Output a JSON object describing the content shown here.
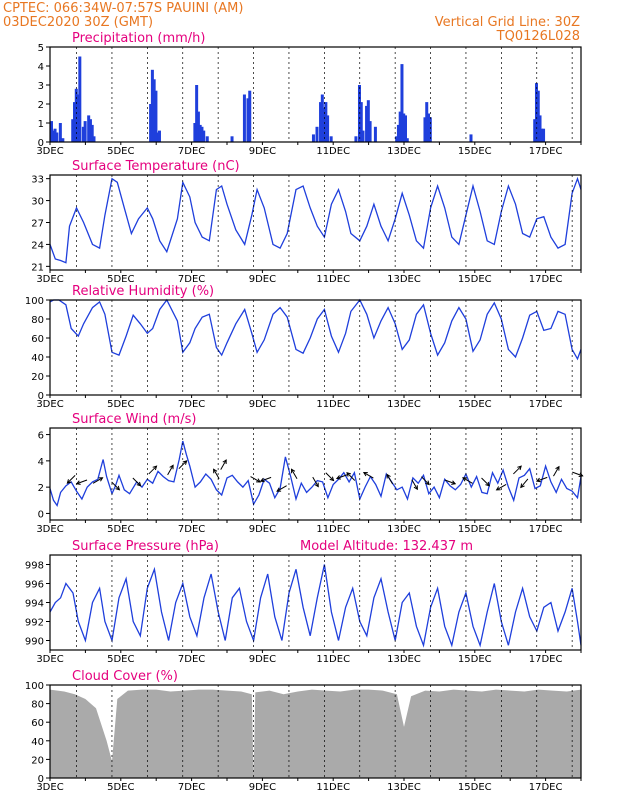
{
  "header": {
    "line1_left": "CPTEC:   066:34W-07:57S   PAUINI (AM)",
    "line2_left": "03DEC2020 30Z (GMT)",
    "line2_right": "Vertical Grid Line: 30Z",
    "line3_right": "TQ0126L028"
  },
  "colors": {
    "header": "#e87722",
    "title": "#e5007e",
    "line": "#1f3fdc",
    "cloud": "#aaaaaa"
  },
  "x_axis": {
    "tick_labels": [
      "3DEC",
      "5DEC",
      "7DEC",
      "9DEC",
      "11DEC",
      "13DEC",
      "15DEC",
      "17DEC"
    ],
    "start_day": 3,
    "end_day": 18,
    "grid_days": [
      3.75,
      4.75,
      5.75,
      6.75,
      7.75,
      8.75,
      9.75,
      10.75,
      11.75,
      12.75,
      13.75,
      14.75,
      15.75,
      16.75,
      17.75
    ]
  },
  "chart_data": [
    {
      "type": "bar",
      "title": "Precipitation (mm/h)",
      "ylim": [
        0,
        5
      ],
      "yticks": [
        0,
        1,
        2,
        3,
        4,
        5
      ],
      "x": [
        3.0,
        3.05,
        3.1,
        3.15,
        3.25,
        3.32,
        3.6,
        3.65,
        3.7,
        3.75,
        3.8,
        3.9,
        3.95,
        4.05,
        4.1,
        4.15,
        4.2,
        5.8,
        5.85,
        5.9,
        5.95,
        6.0,
        6.05,
        7.05,
        7.1,
        7.15,
        7.2,
        7.25,
        7.3,
        7.4,
        8.1,
        8.45,
        8.55,
        8.6,
        10.4,
        10.5,
        10.6,
        10.65,
        10.7,
        10.75,
        10.8,
        10.9,
        11.6,
        11.7,
        11.75,
        11.8,
        11.9,
        11.95,
        12.0,
        12.15,
        12.75,
        12.8,
        12.85,
        12.9,
        12.95,
        13.0,
        13.05,
        13.55,
        13.6,
        13.65,
        13.7,
        14.85,
        16.65,
        16.7,
        16.75,
        16.8,
        16.85,
        16.9
      ],
      "values": [
        1.1,
        0.6,
        0.7,
        0.5,
        1.0,
        0.2,
        1.2,
        2.1,
        2.8,
        2.5,
        4.5,
        0.8,
        1.1,
        1.4,
        1.2,
        0.9,
        0.3,
        2.0,
        3.8,
        3.3,
        2.7,
        0.5,
        0.6,
        1.0,
        3.0,
        1.6,
        0.9,
        0.8,
        0.6,
        0.3,
        0.3,
        2.5,
        2.3,
        2.7,
        0.4,
        0.8,
        2.1,
        2.5,
        1.8,
        2.1,
        1.4,
        0.3,
        0.3,
        3.0,
        2.1,
        0.6,
        1.9,
        2.2,
        1.1,
        0.8,
        0.3,
        0.9,
        1.6,
        4.1,
        1.5,
        1.4,
        0.2,
        1.3,
        2.1,
        1.5,
        1.3,
        0.4,
        1.2,
        3.1,
        2.7,
        1.4,
        0.7,
        0.7
      ]
    },
    {
      "type": "line",
      "title": "Surface Temperature (nC)",
      "ylim": [
        20.5,
        33.5
      ],
      "yticks": [
        21,
        24,
        27,
        30,
        33
      ],
      "x": [
        3.0,
        3.15,
        3.3,
        3.45,
        3.55,
        3.75,
        3.95,
        4.2,
        4.4,
        4.55,
        4.75,
        4.9,
        5.1,
        5.3,
        5.5,
        5.75,
        5.9,
        6.1,
        6.3,
        6.6,
        6.75,
        6.95,
        7.1,
        7.3,
        7.5,
        7.7,
        7.85,
        8.0,
        8.25,
        8.5,
        8.7,
        8.85,
        9.05,
        9.3,
        9.5,
        9.7,
        9.95,
        10.15,
        10.35,
        10.55,
        10.75,
        10.95,
        11.15,
        11.35,
        11.5,
        11.75,
        11.95,
        12.15,
        12.35,
        12.55,
        12.75,
        12.95,
        13.15,
        13.35,
        13.55,
        13.75,
        13.95,
        14.15,
        14.35,
        14.55,
        14.75,
        14.95,
        15.15,
        15.35,
        15.55,
        15.75,
        15.95,
        16.15,
        16.35,
        16.55,
        16.75,
        16.95,
        17.15,
        17.35,
        17.55,
        17.75,
        17.9,
        18.0
      ],
      "values": [
        24.0,
        22.0,
        21.8,
        21.5,
        26.5,
        29.0,
        27.0,
        24.0,
        23.5,
        28.0,
        33.0,
        32.5,
        29.0,
        25.5,
        27.5,
        29.0,
        27.5,
        24.5,
        23.0,
        27.5,
        32.5,
        30.5,
        27.0,
        25.0,
        24.5,
        31.5,
        32.0,
        29.5,
        26.0,
        24.0,
        28.0,
        31.5,
        29.0,
        24.0,
        23.5,
        25.5,
        31.5,
        32.0,
        29.0,
        26.5,
        25.0,
        29.5,
        31.5,
        28.5,
        25.5,
        24.5,
        26.5,
        29.5,
        26.5,
        24.5,
        27.5,
        31.0,
        28.0,
        24.5,
        23.5,
        29.0,
        32.0,
        29.0,
        25.0,
        24.0,
        28.0,
        32.0,
        28.5,
        24.5,
        24.0,
        28.5,
        32.0,
        29.5,
        25.5,
        25.0,
        27.5,
        27.8,
        25.0,
        23.5,
        24.0,
        31.0,
        33.0,
        31.5
      ]
    },
    {
      "type": "line",
      "title": "Relative Humidity (%)",
      "ylim": [
        0,
        100
      ],
      "yticks": [
        0,
        20,
        40,
        60,
        80,
        100
      ],
      "x": [
        3.0,
        3.1,
        3.25,
        3.45,
        3.6,
        3.8,
        3.95,
        4.2,
        4.4,
        4.55,
        4.75,
        4.95,
        5.15,
        5.35,
        5.55,
        5.75,
        5.9,
        6.1,
        6.3,
        6.6,
        6.75,
        6.95,
        7.1,
        7.3,
        7.5,
        7.7,
        7.85,
        8.0,
        8.25,
        8.5,
        8.7,
        8.85,
        9.05,
        9.3,
        9.5,
        9.7,
        9.95,
        10.15,
        10.35,
        10.55,
        10.75,
        10.95,
        11.15,
        11.35,
        11.5,
        11.75,
        11.95,
        12.15,
        12.35,
        12.55,
        12.75,
        12.95,
        13.15,
        13.35,
        13.55,
        13.75,
        13.95,
        14.15,
        14.35,
        14.55,
        14.75,
        14.95,
        15.15,
        15.35,
        15.55,
        15.75,
        15.95,
        16.15,
        16.35,
        16.55,
        16.75,
        16.95,
        17.15,
        17.35,
        17.55,
        17.75,
        17.9,
        18.0
      ],
      "values": [
        98,
        100,
        100,
        95,
        70,
        62,
        75,
        92,
        98,
        85,
        45,
        42,
        62,
        84,
        75,
        65,
        70,
        90,
        100,
        78,
        45,
        55,
        70,
        82,
        85,
        50,
        42,
        55,
        75,
        90,
        65,
        45,
        58,
        85,
        92,
        82,
        48,
        44,
        60,
        80,
        90,
        62,
        45,
        65,
        88,
        100,
        85,
        60,
        78,
        92,
        75,
        48,
        58,
        85,
        95,
        65,
        42,
        55,
        78,
        92,
        80,
        46,
        58,
        85,
        97,
        80,
        48,
        40,
        60,
        84,
        88,
        68,
        70,
        88,
        85,
        48,
        38,
        48
      ]
    },
    {
      "type": "line",
      "title": "Surface Wind (m/s)",
      "ylim": [
        -0.5,
        6.5
      ],
      "yticks": [
        0,
        2,
        4,
        6
      ],
      "x": [
        3.0,
        3.1,
        3.2,
        3.3,
        3.45,
        3.6,
        3.75,
        3.9,
        4.05,
        4.2,
        4.35,
        4.5,
        4.6,
        4.75,
        4.85,
        4.95,
        5.1,
        5.25,
        5.45,
        5.6,
        5.75,
        5.9,
        6.05,
        6.2,
        6.35,
        6.5,
        6.65,
        6.75,
        6.85,
        6.95,
        7.1,
        7.25,
        7.4,
        7.55,
        7.7,
        7.85,
        8.0,
        8.15,
        8.3,
        8.45,
        8.6,
        8.75,
        8.9,
        9.05,
        9.2,
        9.35,
        9.5,
        9.65,
        9.8,
        9.95,
        10.1,
        10.25,
        10.4,
        10.55,
        10.7,
        10.85,
        11.0,
        11.15,
        11.3,
        11.45,
        11.6,
        11.75,
        11.9,
        12.05,
        12.2,
        12.35,
        12.5,
        12.65,
        12.8,
        12.95,
        13.1,
        13.25,
        13.4,
        13.55,
        13.7,
        13.85,
        14.0,
        14.15,
        14.3,
        14.45,
        14.6,
        14.75,
        14.9,
        15.05,
        15.2,
        15.35,
        15.5,
        15.65,
        15.8,
        15.95,
        16.1,
        16.25,
        16.4,
        16.55,
        16.7,
        16.85,
        17.0,
        17.15,
        17.3,
        17.45,
        17.6,
        17.75,
        17.9,
        18.0
      ],
      "values": [
        1.9,
        1.0,
        0.6,
        1.6,
        2.1,
        2.4,
        1.7,
        1.1,
        2.0,
        2.4,
        2.6,
        4.1,
        2.8,
        1.5,
        2.1,
        2.9,
        1.8,
        1.5,
        2.4,
        2.0,
        2.6,
        2.3,
        3.2,
        2.8,
        2.5,
        2.4,
        4.1,
        5.5,
        4.5,
        3.6,
        2.0,
        2.4,
        3.0,
        2.6,
        1.8,
        1.4,
        2.7,
        2.9,
        2.4,
        2.0,
        2.5,
        0.7,
        1.4,
        2.6,
        2.3,
        1.2,
        1.9,
        4.3,
        2.8,
        1.1,
        2.3,
        1.6,
        2.0,
        2.5,
        2.4,
        1.2,
        2.2,
        2.6,
        3.1,
        2.4,
        3.1,
        1.1,
        2.0,
        2.8,
        2.2,
        1.3,
        3.0,
        2.4,
        1.8,
        2.0,
        1.1,
        2.7,
        2.3,
        2.9,
        1.5,
        2.0,
        1.2,
        2.6,
        2.1,
        1.8,
        2.2,
        3.0,
        2.0,
        2.8,
        1.6,
        1.5,
        3.1,
        2.3,
        3.3,
        2.0,
        1.0,
        2.7,
        2.9,
        3.4,
        1.9,
        2.1,
        3.6,
        2.4,
        1.6,
        2.6,
        1.9,
        1.7,
        1.2,
        2.8
      ],
      "arrows": [
        {
          "x": 3.6,
          "y": 2.6,
          "dir_deg": 225
        },
        {
          "x": 3.9,
          "y": 2.4,
          "dir_deg": 200
        },
        {
          "x": 4.35,
          "y": 2.5,
          "dir_deg": 30
        },
        {
          "x": 4.85,
          "y": 2.1,
          "dir_deg": 315
        },
        {
          "x": 5.45,
          "y": 2.4,
          "dir_deg": 315
        },
        {
          "x": 5.9,
          "y": 3.3,
          "dir_deg": 45
        },
        {
          "x": 6.4,
          "y": 3.3,
          "dir_deg": 60
        },
        {
          "x": 6.75,
          "y": 3.7,
          "dir_deg": 45
        },
        {
          "x": 7.7,
          "y": 3.0,
          "dir_deg": 120
        },
        {
          "x": 7.9,
          "y": 3.7,
          "dir_deg": 60
        },
        {
          "x": 8.8,
          "y": 2.6,
          "dir_deg": 330
        },
        {
          "x": 9.1,
          "y": 2.6,
          "dir_deg": 200
        },
        {
          "x": 9.55,
          "y": 1.9,
          "dir_deg": 210
        },
        {
          "x": 9.9,
          "y": 3.0,
          "dir_deg": 120
        },
        {
          "x": 10.5,
          "y": 2.4,
          "dir_deg": 300
        },
        {
          "x": 10.9,
          "y": 2.8,
          "dir_deg": 315
        },
        {
          "x": 11.25,
          "y": 2.8,
          "dir_deg": 200
        },
        {
          "x": 11.5,
          "y": 2.8,
          "dir_deg": 135
        },
        {
          "x": 12.0,
          "y": 2.9,
          "dir_deg": 150
        },
        {
          "x": 12.6,
          "y": 2.6,
          "dir_deg": 120
        },
        {
          "x": 13.3,
          "y": 2.2,
          "dir_deg": 300
        },
        {
          "x": 13.6,
          "y": 2.5,
          "dir_deg": 315
        },
        {
          "x": 14.3,
          "y": 2.4,
          "dir_deg": 340
        },
        {
          "x": 14.8,
          "y": 2.5,
          "dir_deg": 150
        },
        {
          "x": 15.3,
          "y": 2.4,
          "dir_deg": 315
        },
        {
          "x": 15.75,
          "y": 2.0,
          "dir_deg": 210
        },
        {
          "x": 16.2,
          "y": 3.3,
          "dir_deg": 45
        },
        {
          "x": 16.4,
          "y": 2.3,
          "dir_deg": 230
        },
        {
          "x": 16.9,
          "y": 2.6,
          "dir_deg": 200
        },
        {
          "x": 17.3,
          "y": 3.2,
          "dir_deg": 60
        },
        {
          "x": 17.9,
          "y": 3.0,
          "dir_deg": 340
        }
      ]
    },
    {
      "type": "line",
      "title": "Surface Pressure (hPa)",
      "subtitle": "Model Altitude: 132.437 m",
      "ylim": [
        989,
        999
      ],
      "yticks": [
        990,
        992,
        994,
        996,
        998
      ],
      "x": [
        3.0,
        3.15,
        3.3,
        3.45,
        3.65,
        3.8,
        4.0,
        4.2,
        4.4,
        4.55,
        4.75,
        4.95,
        5.15,
        5.35,
        5.55,
        5.75,
        5.95,
        6.15,
        6.35,
        6.55,
        6.75,
        6.95,
        7.15,
        7.35,
        7.55,
        7.75,
        7.95,
        8.15,
        8.35,
        8.55,
        8.75,
        8.95,
        9.15,
        9.35,
        9.55,
        9.75,
        9.95,
        10.15,
        10.35,
        10.55,
        10.75,
        10.95,
        11.15,
        11.35,
        11.55,
        11.75,
        11.95,
        12.15,
        12.35,
        12.55,
        12.75,
        12.95,
        13.15,
        13.35,
        13.55,
        13.75,
        13.95,
        14.15,
        14.35,
        14.55,
        14.75,
        14.95,
        15.15,
        15.35,
        15.55,
        15.75,
        15.95,
        16.15,
        16.35,
        16.55,
        16.75,
        16.95,
        17.15,
        17.35,
        17.55,
        17.75,
        17.9,
        18.0
      ],
      "values": [
        993.0,
        994.0,
        994.5,
        996.0,
        995.0,
        992.0,
        990.0,
        994.0,
        995.5,
        992.0,
        990.0,
        994.5,
        996.5,
        992.0,
        990.5,
        995.5,
        997.5,
        993.0,
        990.0,
        994.0,
        996.0,
        992.5,
        990.5,
        994.5,
        997.0,
        993.0,
        990.0,
        994.5,
        995.5,
        992.0,
        990.0,
        994.5,
        997.0,
        992.5,
        990.0,
        995.0,
        997.5,
        993.5,
        990.5,
        994.5,
        998.0,
        993.0,
        990.0,
        993.5,
        995.5,
        992.0,
        990.5,
        994.5,
        996.5,
        993.0,
        990.0,
        994.0,
        995.0,
        991.5,
        989.5,
        993.5,
        995.5,
        991.5,
        989.5,
        993.0,
        995.0,
        991.5,
        989.5,
        993.0,
        996.0,
        992.0,
        989.5,
        993.0,
        995.5,
        992.5,
        991.0,
        993.5,
        994.0,
        991.0,
        993.0,
        995.5,
        992.0,
        989.5
      ]
    },
    {
      "type": "area",
      "title": "Cloud Cover (%)",
      "ylim": [
        0,
        100
      ],
      "yticks": [
        0,
        20,
        40,
        60,
        80,
        100
      ],
      "x": [
        3.0,
        3.4,
        3.7,
        4.0,
        4.3,
        4.6,
        4.75,
        4.9,
        5.2,
        5.6,
        6.0,
        6.4,
        6.8,
        7.2,
        7.6,
        8.0,
        8.4,
        8.7,
        8.75,
        8.8,
        9.2,
        9.6,
        10.0,
        10.4,
        10.8,
        11.2,
        11.6,
        12.0,
        12.4,
        12.8,
        13.0,
        13.2,
        13.6,
        14.0,
        14.4,
        14.8,
        15.2,
        15.6,
        16.0,
        16.4,
        16.8,
        17.2,
        17.6,
        18.0
      ],
      "values": [
        95,
        93,
        90,
        85,
        75,
        40,
        18,
        85,
        94,
        95,
        95,
        93,
        94,
        95,
        95,
        94,
        93,
        90,
        1,
        92,
        94,
        90,
        93,
        95,
        94,
        93,
        95,
        95,
        94,
        90,
        55,
        88,
        94,
        93,
        95,
        94,
        93,
        95,
        94,
        93,
        95,
        94,
        93,
        95
      ]
    }
  ]
}
